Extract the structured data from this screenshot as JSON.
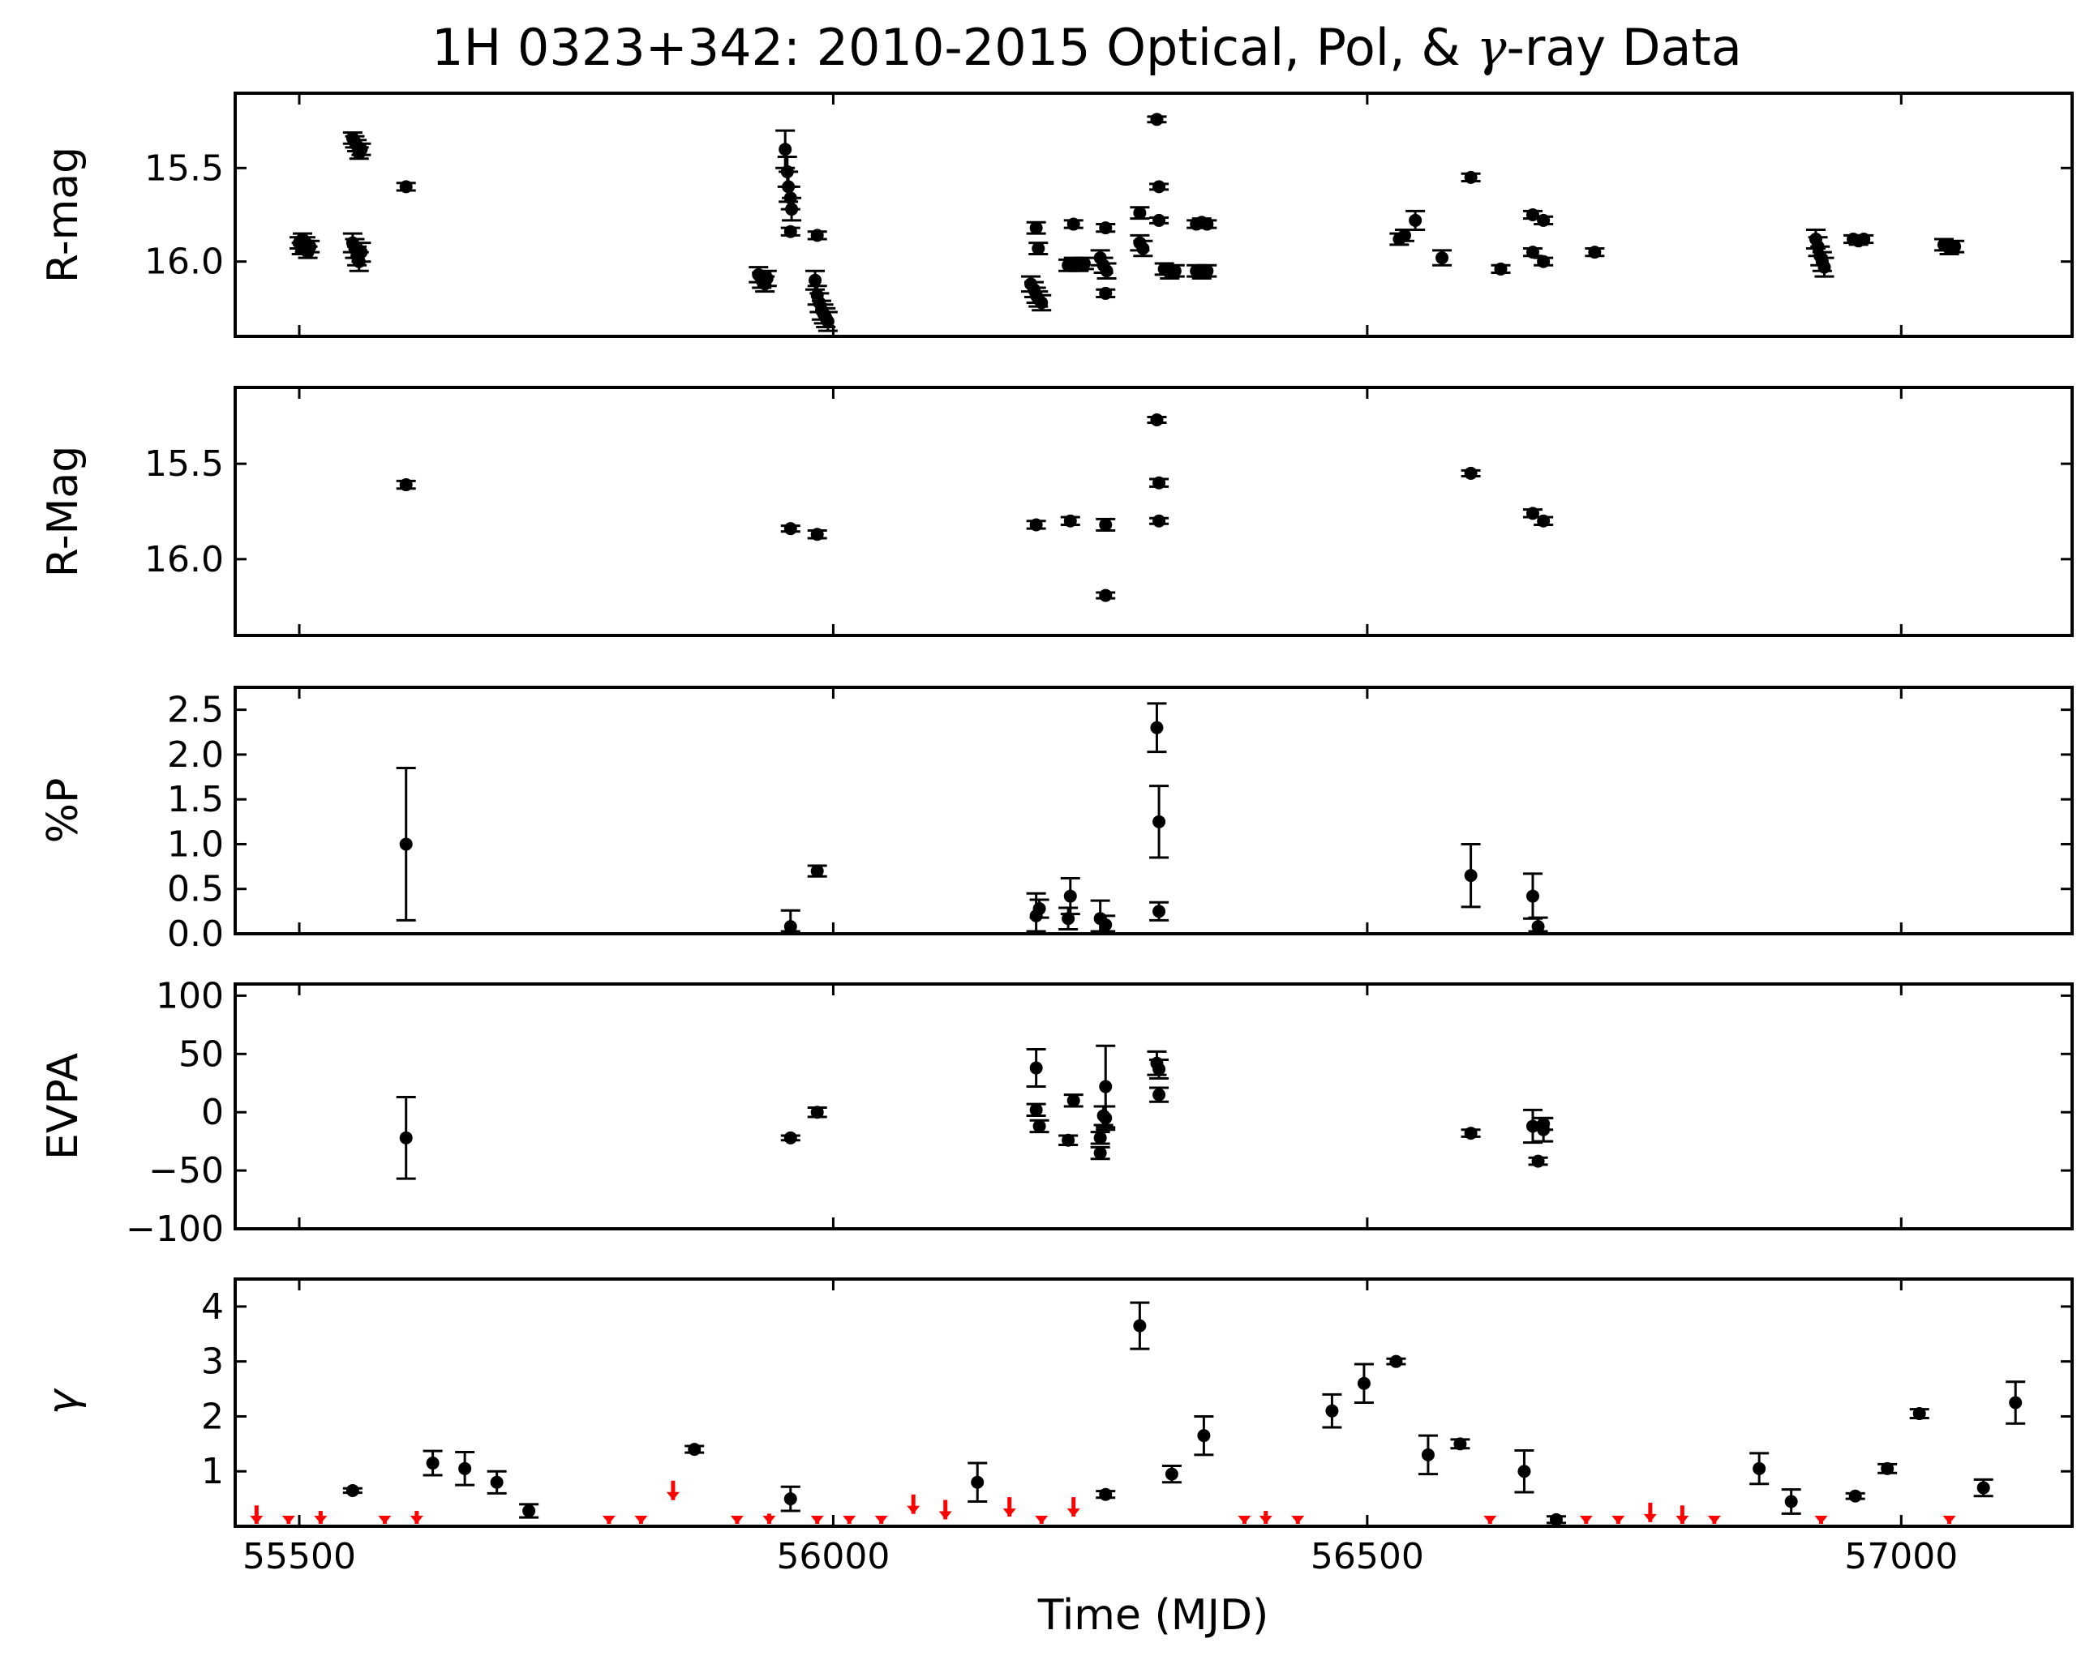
{
  "chart_data": {
    "type": "scatter",
    "title": "1H 0323+342: 2010-2015 Optical, Pol, & γ-ray Data",
    "title_parts": {
      "prefix": "1H 0323+342: 2010-2015 Optical, Pol, & ",
      "symbol": "γ",
      "suffix": "-ray Data"
    },
    "xlabel": "Time (MJD)",
    "xlim": [
      55440,
      57160
    ],
    "xticks": [
      55500,
      56000,
      56500,
      57000
    ],
    "grid": false,
    "colors": {
      "points": "#000000",
      "upper_limits": "#ff0000"
    },
    "panels": [
      {
        "ylabel": "R-mag",
        "ylim": [
          16.4,
          15.1
        ],
        "yticks": [
          15.5,
          16.0
        ],
        "yticklabels": [
          "15.5",
          "16.0"
        ],
        "series": [
          {
            "x": [
              55500,
              55502,
              55503,
              55505,
              55506,
              55508,
              55510
            ],
            "y": [
              15.9,
              15.93,
              15.88,
              15.92,
              15.9,
              15.95,
              15.92
            ],
            "err": [
              0.03,
              0.03,
              0.03,
              0.03,
              0.03,
              0.03,
              0.03
            ]
          },
          {
            "x": [
              55550,
              55552,
              55554,
              55556,
              55558
            ],
            "y": [
              15.34,
              15.36,
              15.38,
              15.42,
              15.4
            ],
            "err": [
              0.03,
              0.03,
              0.03,
              0.03,
              0.03
            ]
          },
          {
            "x": [
              55550,
              55552,
              55554,
              55556,
              55558
            ],
            "y": [
              15.9,
              15.93,
              15.97,
              16.0,
              15.95
            ],
            "err": [
              0.05,
              0.05,
              0.05,
              0.05,
              0.05
            ]
          },
          {
            "x": [
              55600
            ],
            "y": [
              15.6
            ],
            "err": [
              0.02
            ]
          },
          {
            "x": [
              55930,
              55933,
              55936,
              55938
            ],
            "y": [
              16.07,
              16.1,
              16.12,
              16.09
            ],
            "err": [
              0.04,
              0.04,
              0.04,
              0.04
            ]
          },
          {
            "x": [
              55955,
              55957,
              55958,
              55960,
              55961
            ],
            "y": [
              15.4,
              15.52,
              15.6,
              15.66,
              15.72
            ],
            "err": [
              0.1,
              0.08,
              0.08,
              0.06,
              0.06
            ]
          },
          {
            "x": [
              55960
            ],
            "y": [
              15.84
            ],
            "err": [
              0.02
            ]
          },
          {
            "x": [
              55985
            ],
            "y": [
              15.86
            ],
            "err": [
              0.02
            ]
          },
          {
            "x": [
              55983,
              55985,
              55987,
              55989,
              55991,
              55993,
              55995
            ],
            "y": [
              16.1,
              16.18,
              16.22,
              16.26,
              16.28,
              16.3,
              16.32
            ],
            "err": [
              0.05,
              0.05,
              0.05,
              0.05,
              0.05,
              0.05,
              0.05
            ]
          },
          {
            "x": [
              56185,
              56188,
              56190,
              56192,
              56195
            ],
            "y": [
              16.12,
              16.15,
              16.18,
              16.2,
              16.22
            ],
            "err": [
              0.04,
              0.04,
              0.04,
              0.04,
              0.04
            ]
          },
          {
            "x": [
              56190
            ],
            "y": [
              15.82
            ],
            "err": [
              0.03
            ]
          },
          {
            "x": [
              56192
            ],
            "y": [
              15.93
            ],
            "err": [
              0.03
            ]
          },
          {
            "x": [
              56220,
              56225,
              56230,
              56235
            ],
            "y": [
              16.02,
              16.01,
              16.02,
              16.01
            ],
            "err": [
              0.03,
              0.03,
              0.03,
              0.03
            ]
          },
          {
            "x": [
              56225
            ],
            "y": [
              15.8
            ],
            "err": [
              0.02
            ]
          },
          {
            "x": [
              56250,
              56253,
              56256
            ],
            "y": [
              15.98,
              16.02,
              16.05
            ],
            "err": [
              0.04,
              0.04,
              0.04
            ]
          },
          {
            "x": [
              56255
            ],
            "y": [
              15.82
            ],
            "err": [
              0.02
            ]
          },
          {
            "x": [
              56255
            ],
            "y": [
              16.17
            ],
            "err": [
              0.02
            ]
          },
          {
            "x": [
              56287,
              56290
            ],
            "y": [
              15.9,
              15.93
            ],
            "err": [
              0.04,
              0.04
            ]
          },
          {
            "x": [
              56287
            ],
            "y": [
              15.74
            ],
            "err": [
              0.03
            ]
          },
          {
            "x": [
              56303
            ],
            "y": [
              15.24
            ],
            "err": [
              0.015
            ]
          },
          {
            "x": [
              56305
            ],
            "y": [
              15.6
            ],
            "err": [
              0.015
            ]
          },
          {
            "x": [
              56305
            ],
            "y": [
              15.78
            ],
            "err": [
              0.015
            ]
          },
          {
            "x": [
              56310,
              56315,
              56320
            ],
            "y": [
              16.04,
              16.06,
              16.05
            ],
            "err": [
              0.03,
              0.03,
              0.03
            ]
          },
          {
            "x": [
              56340,
              56345,
              56350
            ],
            "y": [
              15.8,
              15.79,
              15.8
            ],
            "err": [
              0.02,
              0.02,
              0.02
            ]
          },
          {
            "x": [
              56340,
              56345,
              56350
            ],
            "y": [
              16.05,
              16.06,
              16.05
            ],
            "err": [
              0.03,
              0.03,
              0.03
            ]
          },
          {
            "x": [
              56530,
              56535
            ],
            "y": [
              15.88,
              15.86
            ],
            "err": [
              0.03,
              0.03
            ]
          },
          {
            "x": [
              56545
            ],
            "y": [
              15.78
            ],
            "err": [
              0.05
            ]
          },
          {
            "x": [
              56570
            ],
            "y": [
              15.98
            ],
            "err": [
              0.04
            ]
          },
          {
            "x": [
              56597
            ],
            "y": [
              15.55
            ],
            "err": [
              0.02
            ]
          },
          {
            "x": [
              56625
            ],
            "y": [
              16.04
            ],
            "err": [
              0.02
            ]
          },
          {
            "x": [
              56655
            ],
            "y": [
              15.75
            ],
            "err": [
              0.02
            ]
          },
          {
            "x": [
              56665
            ],
            "y": [
              15.78
            ],
            "err": [
              0.02
            ]
          },
          {
            "x": [
              56655
            ],
            "y": [
              15.95
            ],
            "err": [
              0.02
            ]
          },
          {
            "x": [
              56665
            ],
            "y": [
              16.0
            ],
            "err": [
              0.02
            ]
          },
          {
            "x": [
              56713
            ],
            "y": [
              15.95
            ],
            "err": [
              0.02
            ]
          },
          {
            "x": [
              56920,
              56922,
              56924,
              56926,
              56928
            ],
            "y": [
              15.88,
              15.92,
              15.97,
              16.0,
              16.03
            ],
            "err": [
              0.05,
              0.05,
              0.05,
              0.05,
              0.05
            ]
          },
          {
            "x": [
              56955,
              56960,
              56965
            ],
            "y": [
              15.88,
              15.89,
              15.88
            ],
            "err": [
              0.02,
              0.02,
              0.02
            ]
          },
          {
            "x": [
              57040,
              57045,
              57050
            ],
            "y": [
              15.91,
              15.93,
              15.92
            ],
            "err": [
              0.03,
              0.03,
              0.03
            ]
          }
        ]
      },
      {
        "ylabel": "R-Mag",
        "ylim": [
          16.4,
          15.1
        ],
        "yticks": [
          15.5,
          16.0
        ],
        "yticklabels": [
          "15.5",
          "16.0"
        ],
        "series": [
          {
            "x": [
              55600,
              55960,
              55985,
              56190,
              56222,
              56255,
              56255,
              56303,
              56305,
              56305,
              56597,
              56655,
              56665
            ],
            "y": [
              15.61,
              15.84,
              15.87,
              15.82,
              15.8,
              15.82,
              16.19,
              15.27,
              15.6,
              15.8,
              15.55,
              15.76,
              15.8
            ],
            "err": [
              0.02,
              0.015,
              0.02,
              0.02,
              0.02,
              0.03,
              0.015,
              0.015,
              0.02,
              0.015,
              0.015,
              0.02,
              0.02
            ]
          }
        ]
      },
      {
        "ylabel": "%P",
        "ylim": [
          0,
          2.75
        ],
        "yticks": [
          0.0,
          0.5,
          1.0,
          1.5,
          2.0,
          2.5
        ],
        "yticklabels": [
          "0.0",
          "0.5",
          "1.0",
          "1.5",
          "2.0",
          "2.5"
        ],
        "series": [
          {
            "x": [
              55600,
              55960,
              55985,
              56190,
              56193,
              56220,
              56222,
              56250,
              56255,
              56303,
              56305,
              56305,
              56597,
              56655,
              56660
            ],
            "y": [
              1.0,
              0.08,
              0.7,
              0.2,
              0.28,
              0.17,
              0.42,
              0.17,
              0.1,
              2.3,
              1.25,
              0.25,
              0.65,
              0.42,
              0.08
            ],
            "err": [
              0.85,
              0.18,
              0.06,
              0.25,
              0.1,
              0.12,
              0.2,
              0.2,
              0.1,
              0.27,
              0.4,
              0.1,
              0.35,
              0.25,
              0.1
            ]
          }
        ]
      },
      {
        "ylabel": "EVPA",
        "ylim": [
          -100,
          110
        ],
        "yticks": [
          -100,
          -50,
          0,
          50,
          100
        ],
        "yticklabels": [
          "−100",
          "−50",
          "0",
          "50",
          "100"
        ],
        "series": [
          {
            "x": [
              55600,
              55960,
              55985,
              56190,
              56190,
              56193,
              56220,
              56225,
              56250,
              56250,
              56253,
              56255,
              56255,
              56303,
              56305,
              56305,
              56597,
              56655,
              56660,
              56665,
              56665
            ],
            "y": [
              -22,
              -22,
              0,
              38,
              2,
              -12,
              -24,
              10,
              -22,
              -35,
              -3,
              22,
              -5,
              42,
              37,
              15,
              -18,
              -12,
              -42,
              -10,
              -15
            ],
            "err": [
              35,
              2,
              4,
              16,
              5,
              5,
              4,
              5,
              5,
              5,
              8,
              35,
              10,
              10,
              8,
              6,
              3,
              14,
              3,
              5,
              10
            ]
          }
        ]
      },
      {
        "ylabel": "γ",
        "ylim": [
          0,
          4.5
        ],
        "yticks": [
          1,
          2,
          3,
          4
        ],
        "yticklabels": [
          "1",
          "2",
          "3",
          "4"
        ],
        "series": [
          {
            "name": "detections",
            "x": [
              55550,
              55625,
              55655,
              55685,
              55715,
              55870,
              55960,
              56135,
              56255,
              56287,
              56317,
              56347,
              56467,
              56497,
              56527,
              56557,
              56587,
              56647,
              56677,
              56867,
              56897,
              56957,
              56987,
              57017,
              57077,
              57107
            ],
            "y": [
              0.65,
              1.15,
              1.05,
              0.8,
              0.28,
              1.4,
              0.5,
              0.8,
              0.58,
              3.65,
              0.95,
              1.65,
              2.1,
              2.6,
              3.0,
              1.3,
              1.5,
              1.0,
              0.12,
              1.05,
              0.45,
              0.55,
              1.05,
              2.05,
              0.7,
              2.25
            ],
            "err": [
              0.04,
              0.22,
              0.3,
              0.2,
              0.12,
              0.06,
              0.22,
              0.35,
              0.06,
              0.42,
              0.15,
              0.35,
              0.3,
              0.35,
              0.05,
              0.35,
              0.08,
              0.38,
              0.06,
              0.28,
              0.22,
              0.05,
              0.08,
              0.08,
              0.15,
              0.38
            ]
          },
          {
            "name": "upper limits",
            "x": [
              55460,
              55490,
              55520,
              55580,
              55610,
              55790,
              55820,
              55850,
              55910,
              55940,
              55985,
              56015,
              56045,
              56075,
              56105,
              56165,
              56195,
              56225,
              56385,
              56405,
              56435,
              56615,
              56705,
              56735,
              56765,
              56795,
              56825,
              56925,
              57045
            ],
            "y": [
              0.35,
              0.12,
              0.25,
              0.0,
              0.25,
              0.0,
              0.0,
              0.8,
              0.1,
              0.2,
              0.0,
              0.0,
              0.0,
              0.55,
              0.45,
              0.5,
              0.1,
              0.5,
              0.0,
              0.25,
              0.12,
              0.0,
              0.12,
              0.0,
              0.4,
              0.35,
              0.15,
              0.12,
              0.12
            ]
          }
        ]
      }
    ]
  }
}
